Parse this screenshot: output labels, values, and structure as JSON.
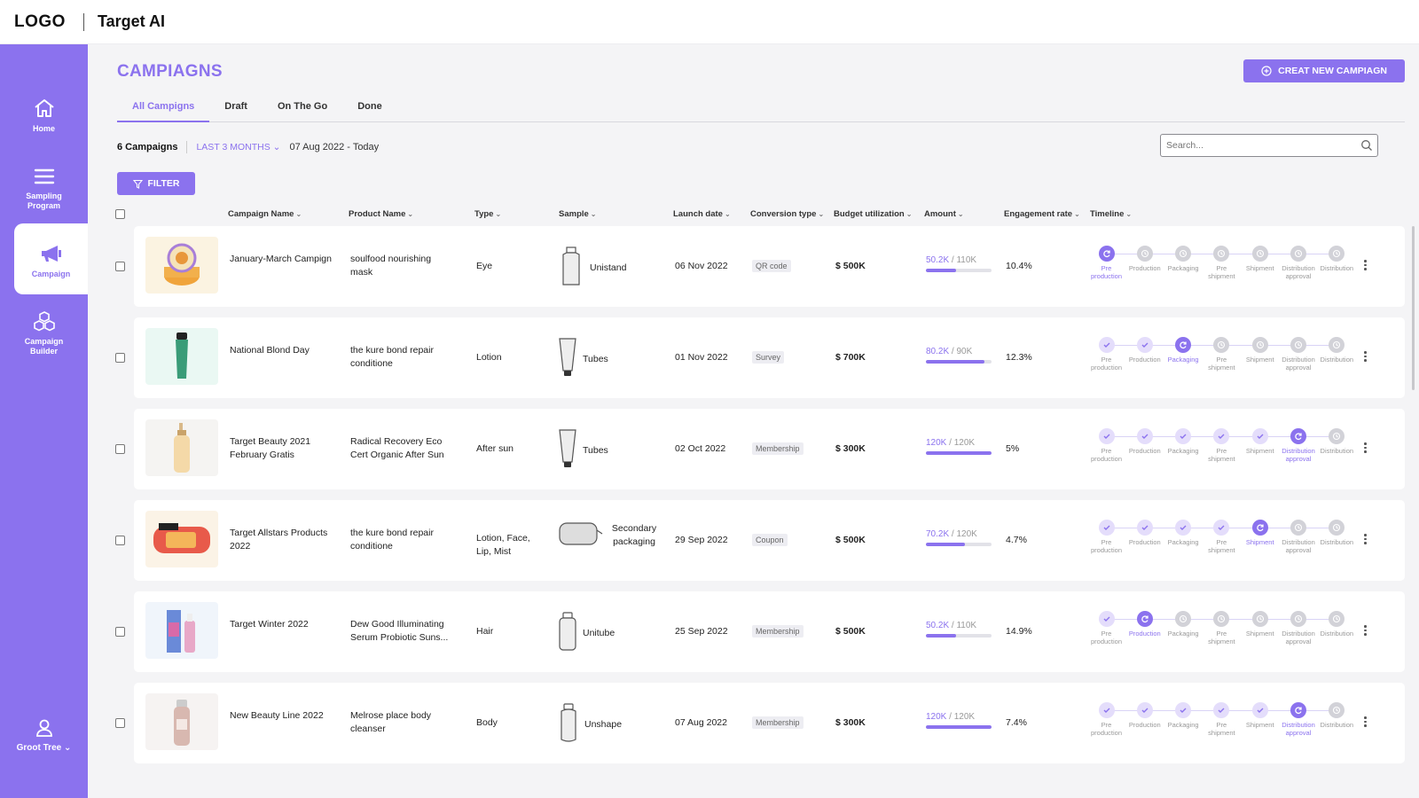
{
  "app": {
    "logo": "LOGO",
    "title": "Target AI"
  },
  "sidebar": {
    "items": [
      {
        "label": "Home",
        "icon": "home-icon"
      },
      {
        "label": "Sampling Program",
        "icon": "menu-icon"
      },
      {
        "label": "Campaign",
        "icon": "megaphone-icon",
        "active": true
      },
      {
        "label": "Campaign Builder",
        "icon": "cubes-icon"
      }
    ],
    "user": {
      "label": "Groot Tree",
      "icon": "user-icon"
    }
  },
  "page": {
    "title": "CAMPIAGNS",
    "create_button": "CREAT NEW CAMPIAGN",
    "tabs": [
      "All Campigns",
      "Draft",
      "On The Go",
      "Done"
    ],
    "campaign_count": "6 Campaigns",
    "range": "LAST 3 MONTHS",
    "date_range": "07 Aug 2022 - Today",
    "search_placeholder": "Search...",
    "filter_button": "FILTER"
  },
  "table": {
    "columns": [
      "Campaign Name",
      "Product Name",
      "Type",
      "Sample",
      "Launch date",
      "Conversion type",
      "Budget utilization",
      "Amount",
      "Engagement rate",
      "Timeline"
    ],
    "timeline_steps": [
      "Pre production",
      "Production",
      "Packaging",
      "Pre shipment",
      "Shipment",
      "Distribution approval",
      "Distribution"
    ],
    "rows": [
      {
        "campaign": "January-March Campign",
        "product": "soulfood nourishing mask",
        "type": "Eye",
        "sample": "Unistand",
        "launch": "06 Nov 2022",
        "conversion": "QR code",
        "budget": "$ 500K",
        "amount_used": "50.2K",
        "amount_total": "110K",
        "amount_ratio": 0.46,
        "engagement": "10.4%",
        "current_step": 0
      },
      {
        "campaign": "National Blond Day",
        "product": "the kure bond repair conditione",
        "type": "Lotion",
        "sample": "Tubes",
        "launch": "01 Nov 2022",
        "conversion": "Survey",
        "budget": "$ 700K",
        "amount_used": "80.2K",
        "amount_total": "90K",
        "amount_ratio": 0.89,
        "engagement": "12.3%",
        "current_step": 2
      },
      {
        "campaign": "Target Beauty 2021 February Gratis",
        "product": "Radical Recovery Eco Cert Organic After Sun",
        "type": "After sun",
        "sample": "Tubes",
        "launch": "02 Oct 2022",
        "conversion": "Membership",
        "budget": "$ 300K",
        "amount_used": "120K",
        "amount_total": "120K",
        "amount_ratio": 1.0,
        "engagement": "5%",
        "current_step": 5
      },
      {
        "campaign": "Target Allstars Products 2022",
        "product": "the kure bond repair conditione",
        "type": "Lotion, Face, Lip, Mist",
        "sample": "Secondary packaging",
        "launch": "29 Sep 2022",
        "conversion": "Coupon",
        "budget": "$ 500K",
        "amount_used": "70.2K",
        "amount_total": "120K",
        "amount_ratio": 0.59,
        "engagement": "4.7%",
        "current_step": 4
      },
      {
        "campaign": "Target Winter 2022",
        "product": "Dew Good Illuminating Serum Probiotic Suns...",
        "type": "Hair",
        "sample": "Unitube",
        "launch": "25 Sep 2022",
        "conversion": "Membership",
        "budget": "$ 500K",
        "amount_used": "50.2K",
        "amount_total": "110K",
        "amount_ratio": 0.46,
        "engagement": "14.9%",
        "current_step": 1
      },
      {
        "campaign": "New Beauty Line 2022",
        "product": "Melrose place body cleanser",
        "type": "Body",
        "sample": "Unshape",
        "launch": "07 Aug 2022",
        "conversion": "Membership",
        "budget": "$ 300K",
        "amount_used": "120K",
        "amount_total": "120K",
        "amount_ratio": 1.0,
        "engagement": "7.4%",
        "current_step": 5
      }
    ]
  },
  "colors": {
    "accent": "#8b72ee",
    "background": "#f4f4f6"
  }
}
